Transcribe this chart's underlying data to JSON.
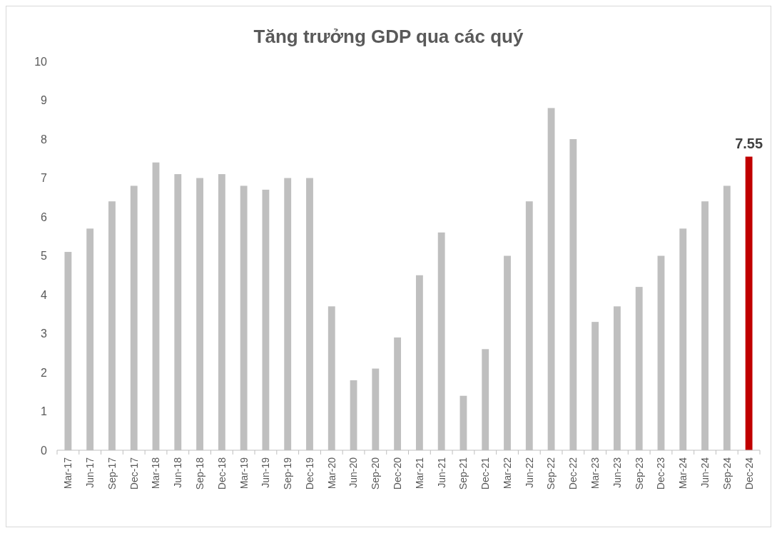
{
  "chart_data": {
    "type": "bar",
    "title": "Tăng trưởng GDP qua các quý",
    "categories": [
      "Mar-17",
      "Jun-17",
      "Sep-17",
      "Dec-17",
      "Mar-18",
      "Jun-18",
      "Sep-18",
      "Dec-18",
      "Mar-19",
      "Jun-19",
      "Sep-19",
      "Dec-19",
      "Mar-20",
      "Jun-20",
      "Sep-20",
      "Dec-20",
      "Mar-21",
      "Jun-21",
      "Sep-21",
      "Dec-21",
      "Mar-22",
      "Jun-22",
      "Sep-22",
      "Dec-22",
      "Mar-23",
      "Jun-23",
      "Sep-23",
      "Dec-23",
      "Mar-24",
      "Jun-24",
      "Sep-24",
      "Dec-24"
    ],
    "values": [
      5.1,
      5.7,
      6.4,
      6.8,
      7.4,
      7.1,
      7.0,
      7.1,
      6.8,
      6.7,
      7.0,
      7.0,
      3.7,
      1.8,
      2.1,
      2.9,
      4.5,
      5.6,
      1.4,
      2.6,
      5.0,
      6.4,
      8.8,
      8.0,
      3.3,
      3.7,
      4.2,
      5.0,
      5.7,
      6.4,
      6.8,
      7.55
    ],
    "colors": [
      "#bfbfbf",
      "#bfbfbf",
      "#bfbfbf",
      "#bfbfbf",
      "#bfbfbf",
      "#bfbfbf",
      "#bfbfbf",
      "#bfbfbf",
      "#bfbfbf",
      "#bfbfbf",
      "#bfbfbf",
      "#bfbfbf",
      "#bfbfbf",
      "#bfbfbf",
      "#bfbfbf",
      "#bfbfbf",
      "#bfbfbf",
      "#bfbfbf",
      "#bfbfbf",
      "#bfbfbf",
      "#bfbfbf",
      "#bfbfbf",
      "#bfbfbf",
      "#bfbfbf",
      "#bfbfbf",
      "#bfbfbf",
      "#bfbfbf",
      "#bfbfbf",
      "#bfbfbf",
      "#bfbfbf",
      "#bfbfbf",
      "#c00000"
    ],
    "value_labels": [
      null,
      null,
      null,
      null,
      null,
      null,
      null,
      null,
      null,
      null,
      null,
      null,
      null,
      null,
      null,
      null,
      null,
      null,
      null,
      null,
      null,
      null,
      null,
      null,
      null,
      null,
      null,
      null,
      null,
      null,
      null,
      "7.55"
    ],
    "ylim": [
      0,
      10
    ],
    "yticks": [
      0,
      1,
      2,
      3,
      4,
      5,
      6,
      7,
      8,
      9,
      10
    ]
  }
}
